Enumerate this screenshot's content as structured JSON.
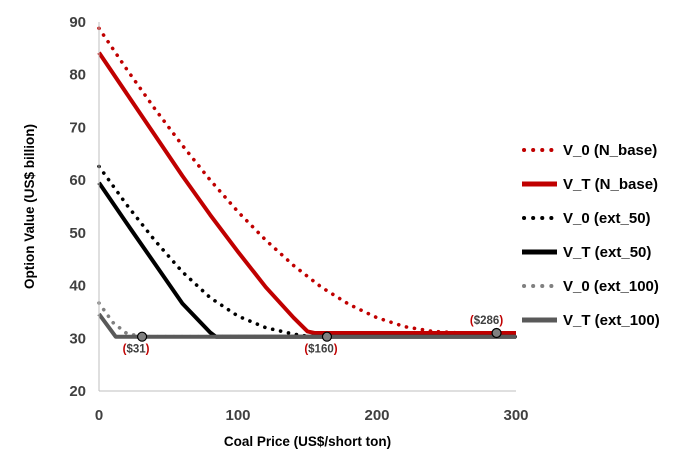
{
  "chart_data": {
    "type": "line",
    "xlabel": "Coal Price (US$/short ton)",
    "ylabel": "Option Value (US$ billion)",
    "xlim": [
      0,
      300
    ],
    "ylim": [
      20,
      90
    ],
    "xticks": [
      "0",
      "100",
      "200",
      "300"
    ],
    "yticks": [
      "20",
      "30",
      "40",
      "50",
      "60",
      "70",
      "80",
      "90"
    ],
    "grid": false,
    "legend_position": "right",
    "series": [
      {
        "name": "V_0 (N_base)",
        "style": "dotted",
        "color": "#c00000",
        "x": [
          0,
          20,
          40,
          60,
          80,
          100,
          120,
          140,
          160,
          180,
          200,
          220,
          240,
          260,
          280,
          286,
          300
        ],
        "y": [
          88.8,
          81.0,
          73.6,
          66.6,
          60.0,
          54.0,
          48.6,
          43.8,
          39.7,
          36.4,
          33.9,
          32.2,
          31.3,
          31.0,
          31.0,
          31.0,
          31.0
        ]
      },
      {
        "name": "V_T (N_base)",
        "style": "solid",
        "color": "#c00000",
        "x": [
          0,
          20,
          40,
          60,
          80,
          100,
          120,
          140,
          150,
          155,
          160,
          200,
          250,
          300
        ],
        "y": [
          84.2,
          76.4,
          68.6,
          60.8,
          53.4,
          46.4,
          39.7,
          33.9,
          31.3,
          31.0,
          31.0,
          31.0,
          31.0,
          31.0
        ]
      },
      {
        "name": "V_0 (ext_50)",
        "style": "dotted",
        "color": "#000000",
        "x": [
          0,
          20,
          40,
          60,
          80,
          100,
          120,
          140,
          150,
          160,
          200,
          300
        ],
        "y": [
          62.6,
          55.3,
          48.6,
          42.6,
          37.7,
          34.2,
          32.0,
          30.8,
          30.4,
          30.3,
          30.3,
          30.3
        ]
      },
      {
        "name": "V_T (ext_50)",
        "style": "solid",
        "color": "#000000",
        "x": [
          0,
          20,
          40,
          60,
          80,
          84,
          100,
          200,
          300
        ],
        "y": [
          59.5,
          51.8,
          44.2,
          36.6,
          31.1,
          30.3,
          30.3,
          30.3,
          30.3
        ]
      },
      {
        "name": "V_0 (ext_100)",
        "style": "dotted",
        "color": "#808080",
        "x": [
          0,
          10,
          20,
          31,
          40,
          100,
          300
        ],
        "y": [
          36.7,
          33.0,
          30.9,
          30.3,
          30.3,
          30.3,
          30.3
        ]
      },
      {
        "name": "V_T (ext_100)",
        "style": "solid",
        "color": "#595959",
        "x": [
          0,
          12,
          20,
          100,
          300
        ],
        "y": [
          34.6,
          30.3,
          30.3,
          30.3,
          30.3
        ]
      }
    ],
    "annotations": [
      {
        "text": "($286)",
        "x": 286,
        "y": 31.0,
        "marker_color": "#c00000",
        "label_pos": "above-left"
      },
      {
        "text": "($31)",
        "x": 31,
        "y": 30.3,
        "marker_color": "#808080",
        "label_pos": "below"
      },
      {
        "text": "($160)",
        "x": 164,
        "y": 30.3,
        "marker_color": "#000000",
        "label_pos": "below"
      }
    ]
  }
}
